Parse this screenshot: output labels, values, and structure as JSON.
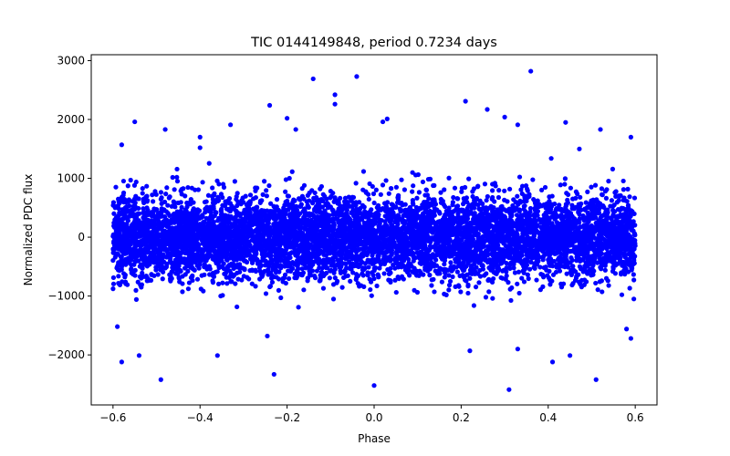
{
  "chart_data": {
    "type": "scatter",
    "title": "TIC 0144149848, period 0.7234 days",
    "xlabel": "Phase",
    "ylabel": "Normalized PDC flux",
    "xlim": [
      -0.65,
      0.65
    ],
    "ylim": [
      -2850,
      3100
    ],
    "x_ticks": [
      -0.6,
      -0.4,
      -0.2,
      0.0,
      0.2,
      0.4,
      0.6
    ],
    "x_tick_labels": [
      "−0.6",
      "−0.4",
      "−0.2",
      "0.0",
      "0.2",
      "0.4",
      "0.6"
    ],
    "y_ticks": [
      -2000,
      -1000,
      0,
      1000,
      2000,
      3000
    ],
    "y_tick_labels": [
      "−2000",
      "−1000",
      "0",
      "1000",
      "2000",
      "3000"
    ],
    "grid": false,
    "legend": "none",
    "point_color": "#0000ff",
    "phase_range": [
      -0.6,
      0.6
    ],
    "noise_sigma": 350,
    "n_points": 7000,
    "outliers": [
      {
        "x": -0.58,
        "y": 1570
      },
      {
        "x": -0.58,
        "y": -2120
      },
      {
        "x": -0.55,
        "y": 1960
      },
      {
        "x": -0.54,
        "y": -2010
      },
      {
        "x": -0.49,
        "y": -2420
      },
      {
        "x": -0.48,
        "y": 1830
      },
      {
        "x": -0.4,
        "y": 1700
      },
      {
        "x": -0.4,
        "y": 1520
      },
      {
        "x": -0.33,
        "y": 1910
      },
      {
        "x": -0.36,
        "y": -2010
      },
      {
        "x": -0.24,
        "y": 2240
      },
      {
        "x": -0.23,
        "y": -2330
      },
      {
        "x": -0.2,
        "y": 2020
      },
      {
        "x": -0.18,
        "y": 1830
      },
      {
        "x": -0.14,
        "y": 2690
      },
      {
        "x": -0.09,
        "y": 2420
      },
      {
        "x": -0.09,
        "y": 2260
      },
      {
        "x": -0.04,
        "y": 2730
      },
      {
        "x": 0.0,
        "y": -2520
      },
      {
        "x": 0.02,
        "y": 1960
      },
      {
        "x": 0.03,
        "y": 2010
      },
      {
        "x": 0.21,
        "y": 2310
      },
      {
        "x": 0.22,
        "y": -1930
      },
      {
        "x": 0.26,
        "y": 2170
      },
      {
        "x": 0.3,
        "y": 2040
      },
      {
        "x": 0.31,
        "y": -2590
      },
      {
        "x": 0.33,
        "y": 1910
      },
      {
        "x": 0.33,
        "y": -1900
      },
      {
        "x": 0.36,
        "y": 2820
      },
      {
        "x": 0.41,
        "y": -2120
      },
      {
        "x": 0.44,
        "y": 1950
      },
      {
        "x": 0.45,
        "y": -2010
      },
      {
        "x": 0.51,
        "y": -2420
      },
      {
        "x": 0.52,
        "y": 1830
      },
      {
        "x": 0.59,
        "y": 1700
      },
      {
        "x": 0.59,
        "y": -1720
      },
      {
        "x": -0.59,
        "y": -1520
      },
      {
        "x": 0.58,
        "y": -1560
      }
    ]
  }
}
